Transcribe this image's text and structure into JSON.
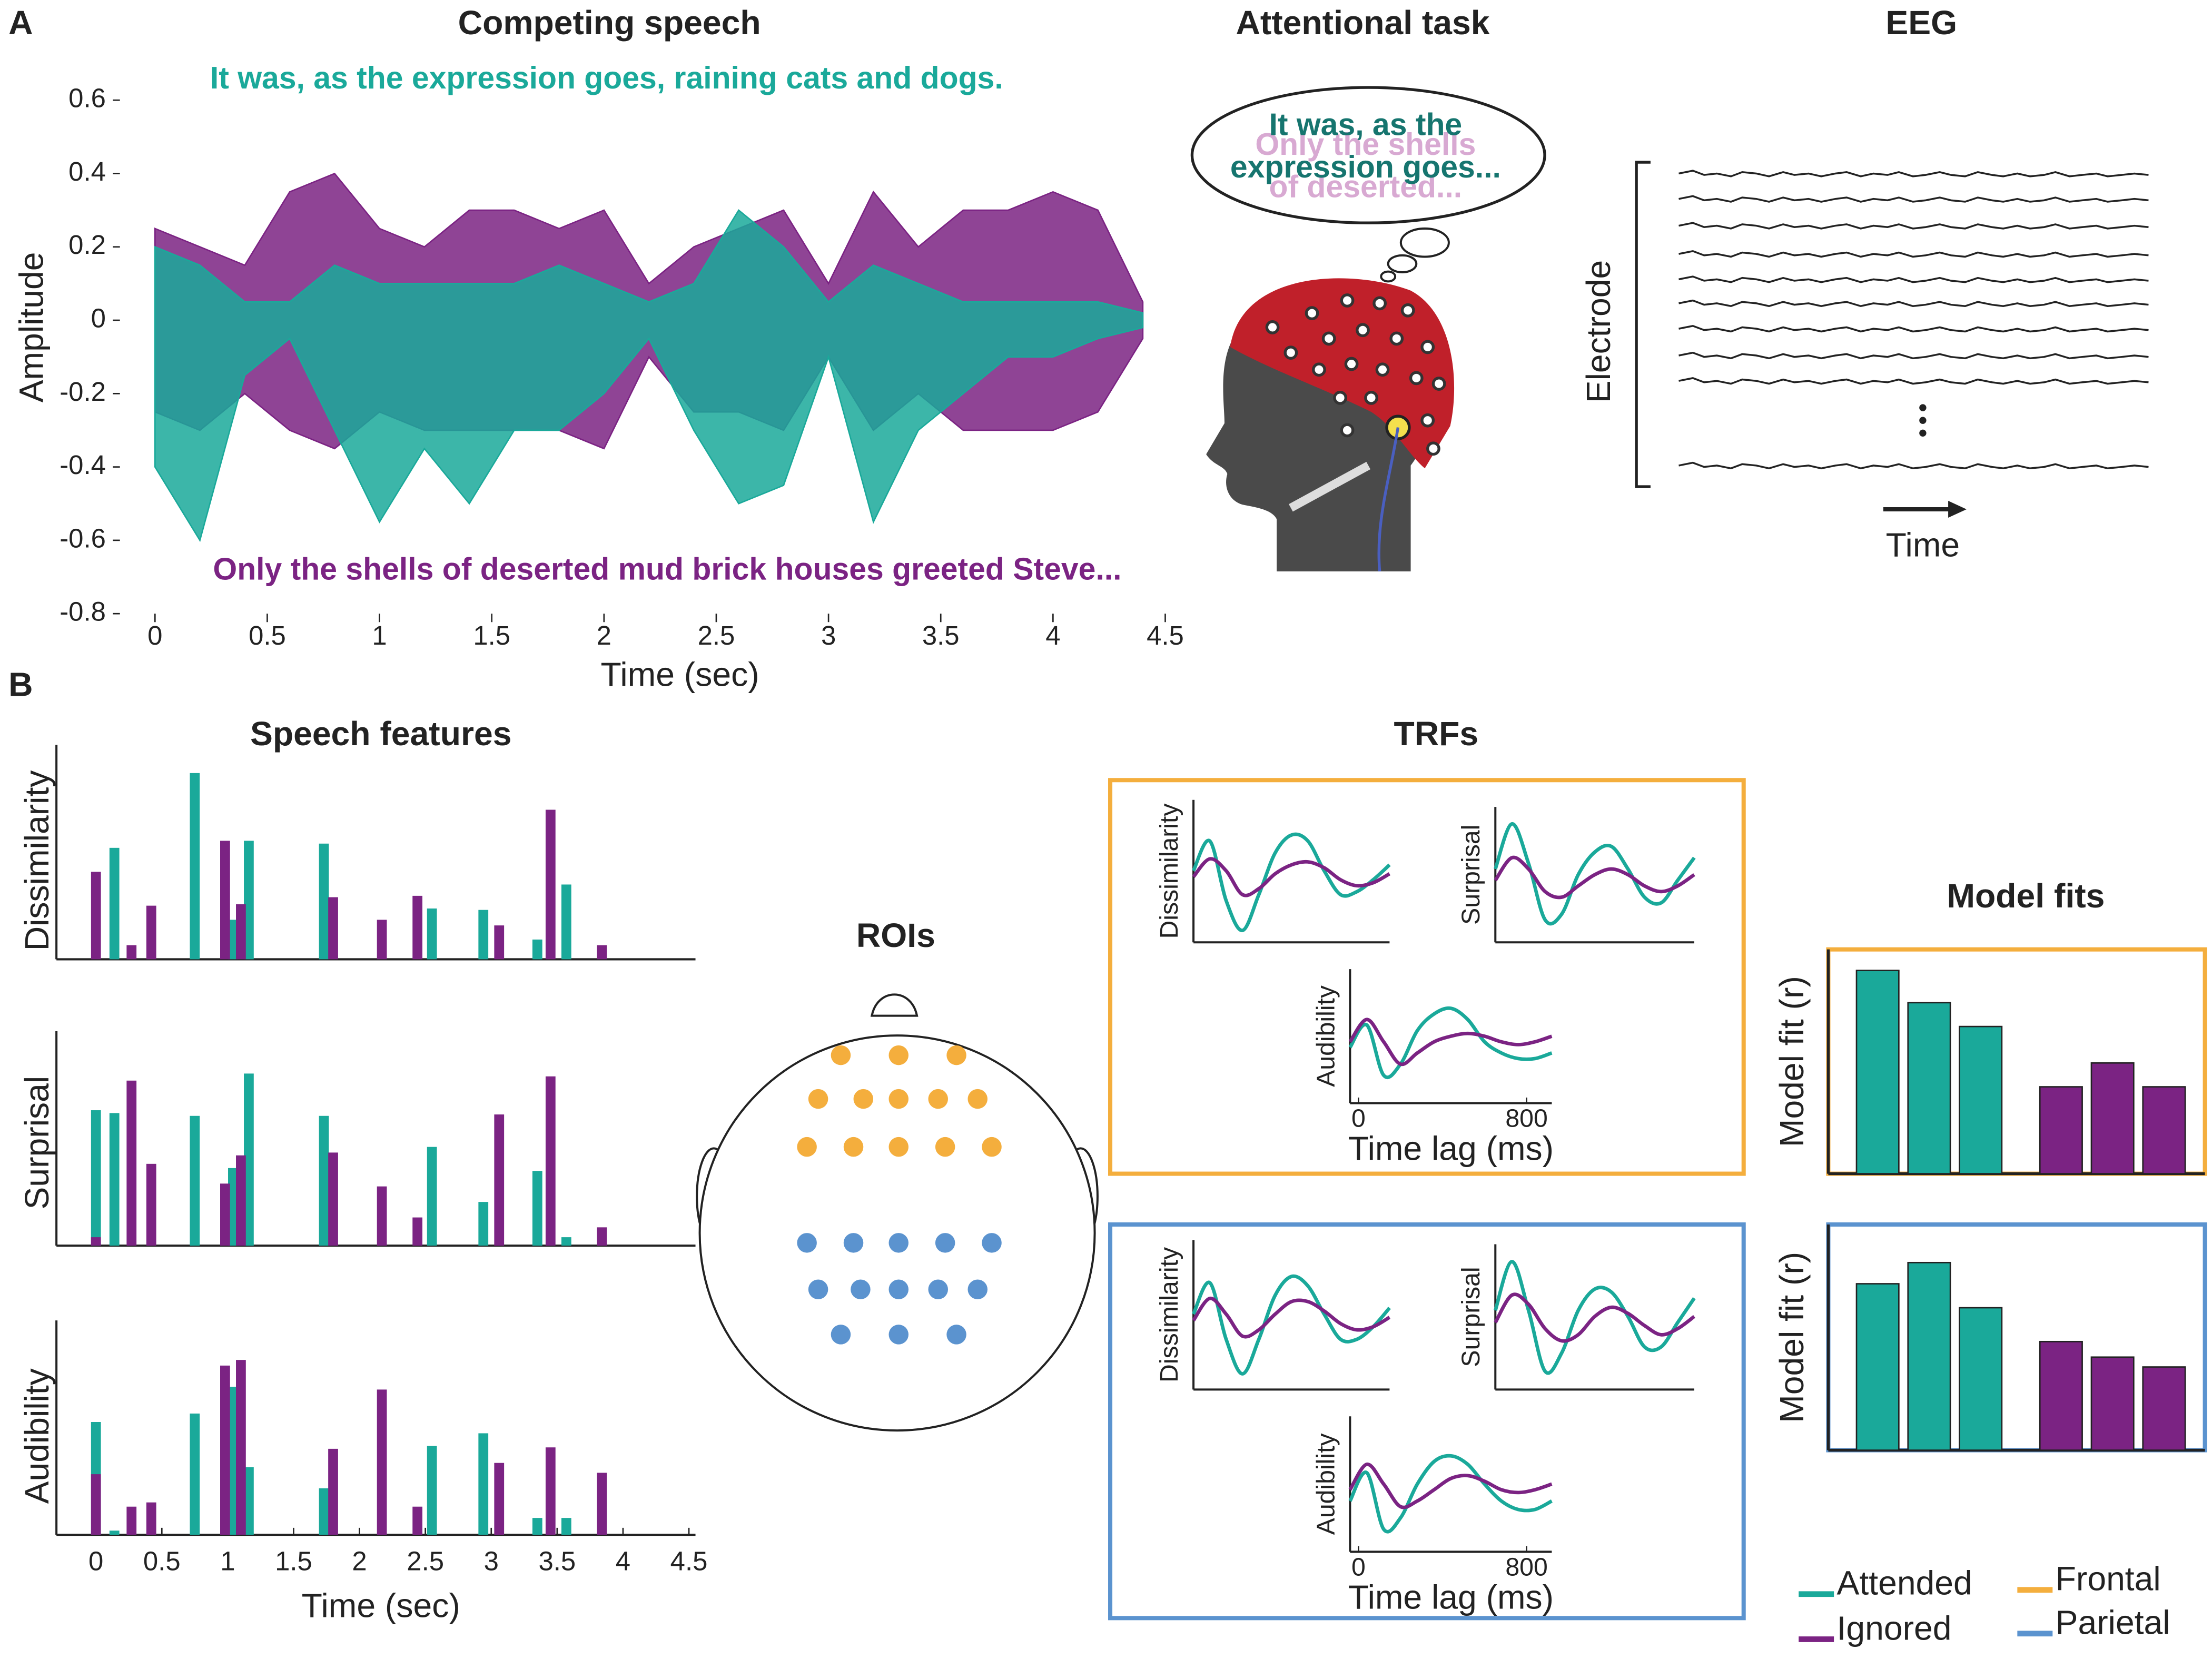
{
  "panel_labels": [
    "A",
    "B"
  ],
  "attentional_task": {
    "title": "Attentional task",
    "attended_text": [
      "It was, as the",
      "expression goes..."
    ],
    "ignored_text": [
      "Only the shells",
      "of deserted..."
    ]
  },
  "eeg": {
    "title": "EEG",
    "ylabel": "Electrode",
    "xlabel": "Time"
  },
  "rois": {
    "title": "ROIs"
  },
  "legend": {
    "items": [
      {
        "name": "Attended",
        "color": "#1aa99a"
      },
      {
        "name": "Ignored",
        "color": "#7b2383"
      },
      {
        "name": "Frontal",
        "color": "#f4ae3d"
      },
      {
        "name": "Parietal",
        "color": "#5b93cf"
      }
    ]
  },
  "chart_data": [
    {
      "type": "area",
      "title": "Competing speech",
      "xlabel": "Time (sec)",
      "ylabel": "Amplitude",
      "annotations": [
        "It was, as the expression goes, raining cats and dogs.",
        "Only the shells of deserted mud brick houses greeted Steve..."
      ],
      "xlim": [
        -0.15,
        4.5
      ],
      "ylim": [
        -0.8,
        0.6
      ],
      "xticks": [
        0,
        0.5,
        1,
        1.5,
        2,
        2.5,
        3,
        3.5,
        4,
        4.5
      ],
      "yticks": [
        -0.8,
        -0.6,
        -0.4,
        -0.2,
        0,
        0.2,
        0.4,
        0.6
      ],
      "x": [
        0,
        0.2,
        0.4,
        0.6,
        0.8,
        1,
        1.2,
        1.4,
        1.6,
        1.8,
        2,
        2.2,
        2.4,
        2.6,
        2.8,
        3,
        3.2,
        3.4,
        3.6,
        3.8,
        4,
        4.2,
        4.4
      ],
      "series": [
        {
          "name": "Ignored",
          "color": "#7b2383",
          "values": [
            0.25,
            0.2,
            0.15,
            0.35,
            0.4,
            0.25,
            0.2,
            0.3,
            0.3,
            0.25,
            0.3,
            0.1,
            0.2,
            0.25,
            0.3,
            0.1,
            0.35,
            0.2,
            0.3,
            0.3,
            0.35,
            0.3,
            0.05
          ],
          "lower": [
            -0.25,
            -0.3,
            -0.2,
            -0.3,
            -0.35,
            -0.25,
            -0.3,
            -0.3,
            -0.3,
            -0.3,
            -0.35,
            -0.1,
            -0.25,
            -0.25,
            -0.3,
            -0.1,
            -0.3,
            -0.2,
            -0.3,
            -0.3,
            -0.3,
            -0.25,
            -0.05
          ]
        },
        {
          "name": "Attended",
          "color": "#1aa99a",
          "values": [
            0.2,
            0.15,
            0.05,
            0.05,
            0.15,
            0.1,
            0.1,
            0.1,
            0.1,
            0.15,
            0.1,
            0.05,
            0.1,
            0.3,
            0.2,
            0.05,
            0.15,
            0.1,
            0.05,
            0.05,
            0.05,
            0.05,
            0.02
          ],
          "lower": [
            -0.4,
            -0.6,
            -0.15,
            -0.05,
            -0.3,
            -0.55,
            -0.35,
            -0.5,
            -0.3,
            -0.3,
            -0.2,
            -0.05,
            -0.3,
            -0.5,
            -0.45,
            -0.1,
            -0.55,
            -0.3,
            -0.2,
            -0.1,
            -0.1,
            -0.05,
            -0.02
          ]
        }
      ]
    },
    {
      "type": "bar",
      "title": "Speech features",
      "ylabel": "Dissimilarity",
      "xlim": [
        -0.3,
        4.55
      ],
      "ylim": [
        0,
        140
      ],
      "series": [
        {
          "name": "Attended",
          "color": "#1aa99a",
          "x": [
            0,
            0.14,
            0.75,
            1.04,
            1.16,
            1.73,
            2.55,
            2.94,
            3.35,
            3.57
          ],
          "values": [
            0,
            79,
            132,
            28,
            84,
            82,
            36,
            35,
            14,
            53
          ]
        },
        {
          "name": "Ignored",
          "color": "#7b2383",
          "x": [
            0,
            0.27,
            0.42,
            0.98,
            1.1,
            1.8,
            2.17,
            2.44,
            3.06,
            3.45,
            3.84
          ],
          "values": [
            62,
            10,
            38,
            84,
            39,
            44,
            28,
            45,
            24,
            106,
            10
          ]
        }
      ]
    },
    {
      "type": "bar",
      "ylabel": "Surprisal",
      "xlim": [
        -0.3,
        4.55
      ],
      "ylim": [
        0,
        140
      ],
      "series": [
        {
          "name": "Attended",
          "color": "#1aa99a",
          "x": [
            0,
            0.14,
            0.75,
            1.04,
            1.16,
            1.73,
            2.55,
            2.94,
            3.35,
            3.57
          ],
          "values": [
            96,
            94,
            92,
            55,
            122,
            92,
            70,
            31,
            53,
            6
          ]
        },
        {
          "name": "Ignored",
          "color": "#7b2383",
          "x": [
            0,
            0.27,
            0.42,
            0.98,
            1.1,
            1.8,
            2.17,
            2.44,
            3.06,
            3.45,
            3.84
          ],
          "values": [
            6,
            117,
            58,
            44,
            64,
            66,
            42,
            20,
            93,
            120,
            13
          ]
        }
      ]
    },
    {
      "type": "bar",
      "ylabel": "Audibility",
      "xlabel": "Time (sec)",
      "xlim": [
        -0.3,
        4.55
      ],
      "ylim": [
        0,
        140
      ],
      "xticks": [
        0,
        0.5,
        1,
        1.5,
        2,
        2.5,
        3,
        3.5,
        4,
        4.5
      ],
      "series": [
        {
          "name": "Attended",
          "color": "#1aa99a",
          "x": [
            0,
            0.14,
            0.75,
            1.04,
            1.16,
            1.73,
            2.55,
            2.94,
            3.35,
            3.57
          ],
          "values": [
            80,
            3,
            86,
            105,
            48,
            33,
            63,
            72,
            12,
            12
          ]
        },
        {
          "name": "Ignored",
          "color": "#7b2383",
          "x": [
            0,
            0.27,
            0.42,
            0.98,
            1.1,
            1.8,
            2.17,
            2.44,
            3.06,
            3.45,
            3.84
          ],
          "values": [
            43,
            20,
            23,
            120,
            124,
            61,
            103,
            20,
            51,
            62,
            44
          ]
        }
      ]
    },
    {
      "type": "line",
      "title": "TRFs",
      "ylabel": "Dissimilarity",
      "xlim": [
        -40,
        920
      ],
      "ylim": [
        -1.1,
        1.1
      ],
      "x": [
        -40,
        40,
        120,
        200,
        280,
        360,
        440,
        520,
        600,
        680,
        760,
        840,
        920
      ],
      "series": [
        {
          "name": "Attended",
          "color": "#1aa99a",
          "values": [
            0.1,
            0.6,
            -0.4,
            -0.9,
            -0.3,
            0.4,
            0.7,
            0.6,
            0.1,
            -0.3,
            -0.25,
            -0.05,
            0.2
          ]
        },
        {
          "name": "Ignored",
          "color": "#7b2383",
          "values": [
            0,
            0.3,
            0.1,
            -0.3,
            -0.2,
            0.05,
            0.2,
            0.25,
            0.15,
            -0.05,
            -0.15,
            -0.1,
            0.05
          ]
        }
      ]
    },
    {
      "type": "line",
      "ylabel": "Surprisal",
      "xlim": [
        -40,
        920
      ],
      "ylim": [
        -1.1,
        1.1
      ],
      "x": [
        -40,
        40,
        120,
        200,
        280,
        360,
        440,
        520,
        600,
        680,
        760,
        840,
        920
      ],
      "series": [
        {
          "name": "Attended",
          "color": "#1aa99a",
          "values": [
            0.2,
            1,
            0.3,
            -0.7,
            -0.6,
            0.1,
            0.5,
            0.6,
            0.2,
            -0.3,
            -0.4,
            0,
            0.4
          ]
        },
        {
          "name": "Ignored",
          "color": "#7b2383",
          "values": [
            0,
            0.4,
            0.2,
            -0.2,
            -0.3,
            -0.1,
            0.1,
            0.2,
            0.1,
            -0.1,
            -0.2,
            -0.1,
            0.1
          ]
        }
      ]
    },
    {
      "type": "line",
      "ylabel": "Audibility",
      "xlabel": "Time lag (ms)",
      "xlim": [
        -40,
        920
      ],
      "ylim": [
        -1.1,
        1.1
      ],
      "xticks": [
        0,
        800
      ],
      "x": [
        -40,
        40,
        120,
        200,
        280,
        360,
        440,
        520,
        600,
        680,
        760,
        840,
        920
      ],
      "series": [
        {
          "name": "Attended",
          "color": "#1aa99a",
          "values": [
            -0.1,
            0.3,
            -0.6,
            -0.4,
            0.2,
            0.5,
            0.6,
            0.4,
            0,
            -0.2,
            -0.3,
            -0.3,
            -0.2
          ]
        },
        {
          "name": "Ignored",
          "color": "#7b2383",
          "values": [
            0,
            0.4,
            0,
            -0.4,
            -0.2,
            0,
            0.1,
            0.15,
            0.1,
            0,
            -0.05,
            0,
            0.1
          ]
        }
      ]
    },
    {
      "type": "line",
      "ylabel": "Dissimilarity",
      "xlim": [
        -40,
        920
      ],
      "ylim": [
        -1.1,
        1.1
      ],
      "x": [
        -40,
        40,
        120,
        200,
        280,
        360,
        440,
        520,
        600,
        680,
        760,
        840,
        920
      ],
      "series": [
        {
          "name": "Attended",
          "color": "#1aa99a",
          "values": [
            0.1,
            0.6,
            -0.3,
            -0.85,
            -0.3,
            0.4,
            0.7,
            0.55,
            0.1,
            -0.3,
            -0.3,
            -0.1,
            0.2
          ]
        },
        {
          "name": "Ignored",
          "color": "#7b2383",
          "values": [
            0,
            0.35,
            0.1,
            -0.25,
            -0.15,
            0.1,
            0.3,
            0.3,
            0.15,
            -0.05,
            -0.15,
            -0.1,
            0.05
          ]
        }
      ]
    },
    {
      "type": "line",
      "ylabel": "Surprisal",
      "xlim": [
        -40,
        920
      ],
      "ylim": [
        -1.1,
        1.1
      ],
      "x": [
        -40,
        40,
        120,
        200,
        280,
        360,
        440,
        520,
        600,
        680,
        760,
        840,
        920
      ],
      "series": [
        {
          "name": "Attended",
          "color": "#1aa99a",
          "values": [
            0.2,
            1,
            0.2,
            -0.8,
            -0.5,
            0.2,
            0.55,
            0.5,
            0.1,
            -0.4,
            -0.4,
            0,
            0.4
          ]
        },
        {
          "name": "Ignored",
          "color": "#7b2383",
          "values": [
            0,
            0.45,
            0.3,
            -0.1,
            -0.3,
            -0.2,
            0.1,
            0.25,
            0.15,
            -0.05,
            -0.2,
            -0.1,
            0.1
          ]
        }
      ]
    },
    {
      "type": "line",
      "ylabel": "Audibility",
      "xlabel": "Time lag (ms)",
      "xlim": [
        -40,
        920
      ],
      "ylim": [
        -1.1,
        1.1
      ],
      "xticks": [
        0,
        800
      ],
      "x": [
        -40,
        40,
        120,
        200,
        280,
        360,
        440,
        520,
        600,
        680,
        760,
        840,
        920
      ],
      "series": [
        {
          "name": "Attended",
          "color": "#1aa99a",
          "values": [
            -0.2,
            0.3,
            -0.7,
            -0.5,
            0.1,
            0.5,
            0.6,
            0.45,
            0.1,
            -0.2,
            -0.35,
            -0.35,
            -0.2
          ]
        },
        {
          "name": "Ignored",
          "color": "#7b2383",
          "values": [
            0,
            0.45,
            0.1,
            -0.3,
            -0.2,
            0,
            0.2,
            0.25,
            0.15,
            0,
            -0.05,
            0,
            0.1
          ]
        }
      ]
    },
    {
      "type": "bar",
      "title": "Model fits",
      "ylabel": "Model fit (r)",
      "ylim": [
        0,
        160
      ],
      "series": [
        {
          "name": "Attended",
          "color": "#1aa99a",
          "values": [
            145,
            122,
            105
          ]
        },
        {
          "name": "Ignored",
          "color": "#7b2383",
          "values": [
            62,
            79,
            62
          ]
        }
      ]
    },
    {
      "type": "bar",
      "ylabel": "Model fit (r)",
      "ylim": [
        0,
        160
      ],
      "series": [
        {
          "name": "Attended",
          "color": "#1aa99a",
          "values": [
            118,
            133,
            101
          ]
        },
        {
          "name": "Ignored",
          "color": "#7b2383",
          "values": [
            77,
            66,
            59
          ]
        }
      ]
    }
  ]
}
